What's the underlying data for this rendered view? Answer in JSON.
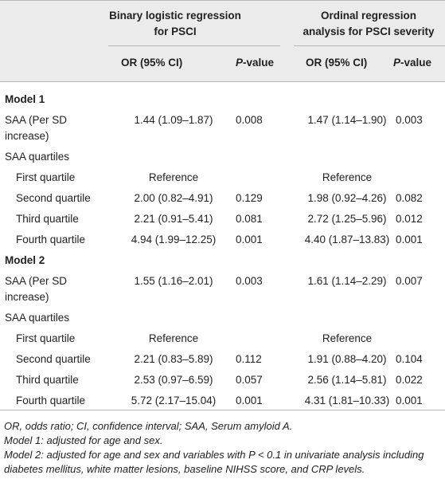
{
  "header": {
    "group1_line1": "Binary logistic regression",
    "group1_line2": "for PSCI",
    "group2_line1": "Ordinal regression",
    "group2_line2": "analysis for PSCI severity",
    "or_ci": "OR (95% CI)",
    "p_prefix": "P",
    "p_suffix": "-value"
  },
  "rows": [
    {
      "kind": "model",
      "label": "Model 1"
    },
    {
      "kind": "data2",
      "label1": "SAA (Per SD",
      "label2": "increase)",
      "or1": "1.44 (1.09–1.87)",
      "p1": "0.008",
      "or2": "1.47 (1.14–1.90)",
      "p2": "0.003"
    },
    {
      "kind": "sub",
      "label": "SAA quartiles"
    },
    {
      "kind": "ref",
      "label": "First quartile",
      "or1": "Reference",
      "or2": "Reference"
    },
    {
      "kind": "data",
      "label": "Second quartile",
      "or1": "2.00 (0.82–4.91)",
      "p1": "0.129",
      "or2": "1.98 (0.92–4.26)",
      "p2": "0.082"
    },
    {
      "kind": "data",
      "label": "Third quartile",
      "or1": "2.21 (0.91–5.41)",
      "p1": "0.081",
      "or2": "2.72 (1.25–5.96)",
      "p2": "0.012"
    },
    {
      "kind": "data",
      "label": "Fourth quartile",
      "or1": "4.94 (1.99–12.25)",
      "p1": "0.001",
      "or2": "4.40 (1.87–13.83)",
      "p2": "0.001"
    },
    {
      "kind": "model",
      "label": "Model 2"
    },
    {
      "kind": "data2",
      "label1": "SAA (Per SD",
      "label2": "increase)",
      "or1": "1.55 (1.16–2.01)",
      "p1": "0.003",
      "or2": "1.61 (1.14–2.29)",
      "p2": "0.007"
    },
    {
      "kind": "sub",
      "label": "SAA quartiles"
    },
    {
      "kind": "ref",
      "label": "First quartile",
      "or1": "Reference",
      "or2": "Reference"
    },
    {
      "kind": "data",
      "label": "Second quartile",
      "or1": "2.21 (0.83–5.89)",
      "p1": "0.112",
      "or2": "1.91 (0.88–4.20)",
      "p2": "0.104"
    },
    {
      "kind": "data",
      "label": "Third quartile",
      "or1": "2.53 (0.97–6.59)",
      "p1": "0.057",
      "or2": "2.56 (1.14–5.81)",
      "p2": "0.022"
    },
    {
      "kind": "data",
      "label": "Fourth quartile",
      "or1": "5.72 (2.17–15.04)",
      "p1": "0.001",
      "or2": "4.31 (1.81–10.33)",
      "p2": "0.001"
    }
  ],
  "notes": {
    "line1": "OR, odds ratio; CI, confidence interval; SAA, Serum amyloid A.",
    "line2": "Model 1: adjusted for age and sex.",
    "line3": "Model 2: adjusted for age and sex and variables with P < 0.1 in univariate analysis including diabetes mellitus, white matter lesions, baseline NIHSS score, and CRP levels."
  }
}
